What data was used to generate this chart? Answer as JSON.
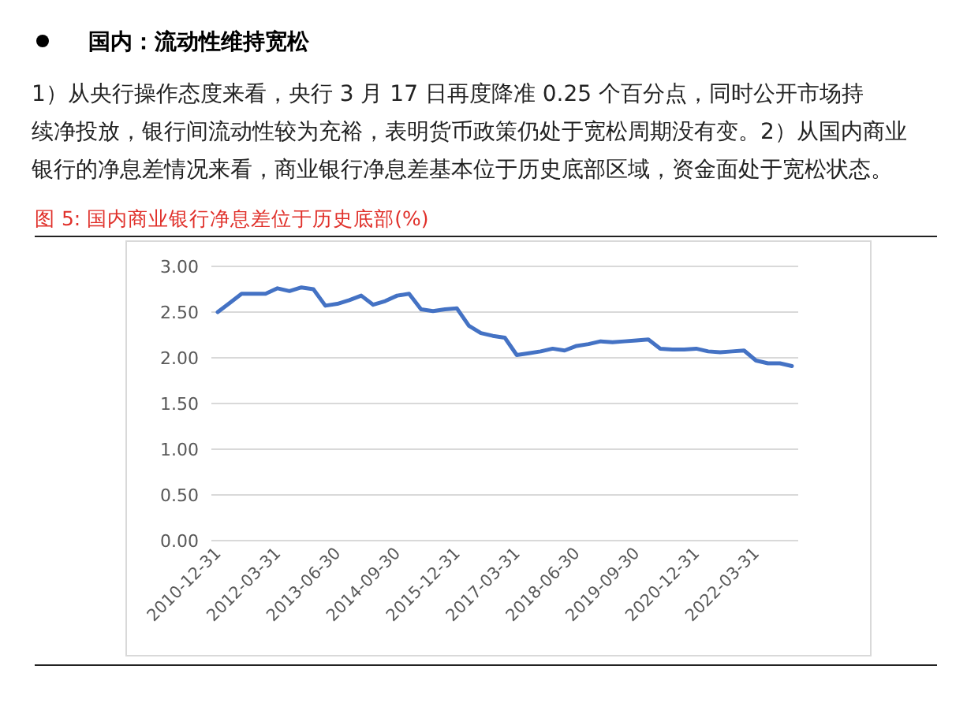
{
  "chart_data": {
    "type": "line",
    "title": "国内：流动性维持宽松",
    "subtitle": "图 5: 国内商业银行净息差位于历史底部(%)",
    "annotations": [
      "1）从央行操作态度来看，央行 3 月 17 日再度降准 0.25 个百分点，同时公开市场持续净投放，银行间流动性较为充裕，表明货币政策仍处于宽松周期没有变。2）从国内商业银行的净息差情况来看，商业银行净息差基本位于历史底部区域，资金面处于宽松状态。"
    ],
    "categories": [
      "2010-12-31",
      null,
      null,
      null,
      null,
      "2012-03-31",
      null,
      null,
      null,
      null,
      "2013-06-30",
      null,
      null,
      null,
      null,
      "2014-09-30",
      null,
      null,
      null,
      null,
      "2015-12-31",
      null,
      null,
      null,
      null,
      "2017-03-31",
      null,
      null,
      null,
      null,
      "2018-06-30",
      null,
      null,
      null,
      null,
      "2019-09-30",
      null,
      null,
      null,
      null,
      "2020-12-31",
      null,
      null,
      null,
      null,
      "2022-03-31",
      null,
      null,
      null
    ],
    "series": [
      {
        "color": "#4472c4",
        "values": [
          2.5,
          2.6,
          2.7,
          2.7,
          2.7,
          2.76,
          2.73,
          2.77,
          2.75,
          2.57,
          2.59,
          2.63,
          2.68,
          2.58,
          2.62,
          2.68,
          2.7,
          2.53,
          2.51,
          2.53,
          2.54,
          2.35,
          2.27,
          2.24,
          2.22,
          2.03,
          2.05,
          2.07,
          2.1,
          2.08,
          2.13,
          2.15,
          2.18,
          2.17,
          2.18,
          2.19,
          2.2,
          2.1,
          2.09,
          2.09,
          2.1,
          2.07,
          2.06,
          2.07,
          2.08,
          1.97,
          1.94,
          1.94,
          1.91
        ]
      }
    ],
    "ylim": [
      0,
      3
    ],
    "yticks": [
      {
        "value": 0,
        "label": "0.00"
      },
      {
        "value": 0.5,
        "label": "0.50"
      },
      {
        "value": 1,
        "label": "1.00"
      },
      {
        "value": 1.5,
        "label": "1.50"
      },
      {
        "value": 2,
        "label": "2.00"
      },
      {
        "value": 2.5,
        "label": "2.50"
      },
      {
        "value": 3,
        "label": "3.00"
      }
    ],
    "grid": "y",
    "marker": "none",
    "line_style": "solid"
  }
}
